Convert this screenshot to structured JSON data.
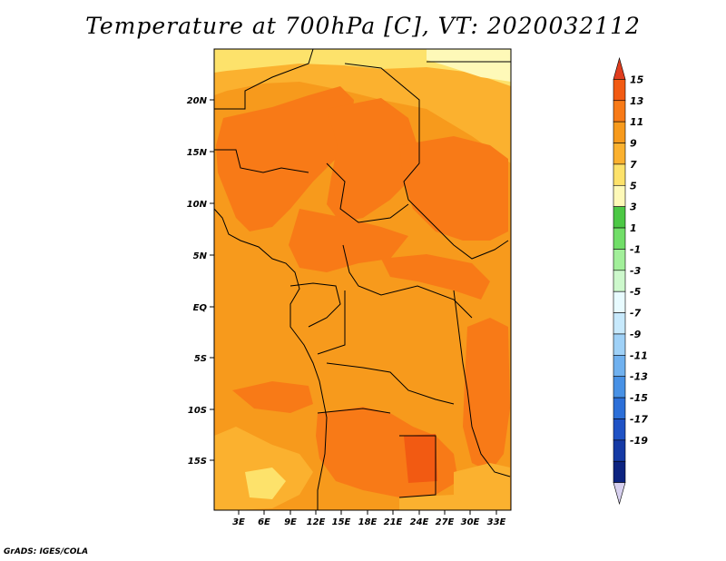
{
  "title": "Temperature at 700hPa [C], VT: 2020032112",
  "credit": "GrADS: IGES/COLA",
  "map": {
    "lat_labels": [
      "20N",
      "15N",
      "10N",
      "5N",
      "EQ",
      "5S",
      "10S",
      "15S"
    ],
    "lon_labels": [
      "3E",
      "6E",
      "9E",
      "12E",
      "15E",
      "18E",
      "21E",
      "24E",
      "27E",
      "30E",
      "33E"
    ]
  },
  "colorbar": {
    "labels": [
      "15",
      "13",
      "11",
      "9",
      "7",
      "5",
      "3",
      "1",
      "-1",
      "-3",
      "-5",
      "-7",
      "-9",
      "-11",
      "-13",
      "-15",
      "-17",
      "-19"
    ],
    "colors": [
      "#e03d1e",
      "#f25a12",
      "#f87a17",
      "#f79a1c",
      "#fbb12f",
      "#fde26b",
      "#fef9b8",
      "#4cc845",
      "#71de68",
      "#a2ef9a",
      "#cdf8cc",
      "#e8fbff",
      "#c7e9fc",
      "#9fd1f7",
      "#70b1ef",
      "#4891e5",
      "#2c6fd8",
      "#1f52c5",
      "#153aa5",
      "#0c2380",
      "#d7d0ef"
    ]
  }
}
